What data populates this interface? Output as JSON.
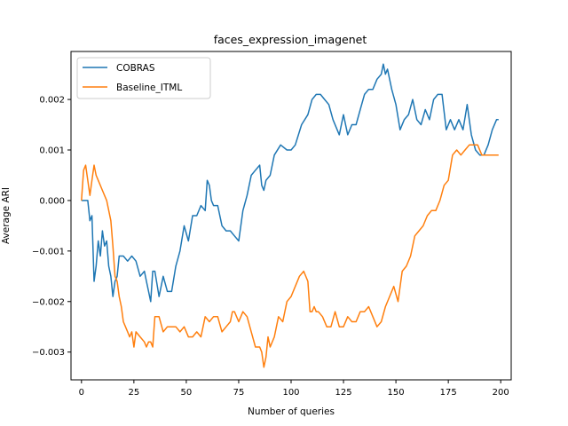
{
  "chart_data": {
    "type": "line",
    "title": "faces_expression_imagenet",
    "xlabel": "Number of queries",
    "ylabel": "Average ARI",
    "xlim": [
      -5,
      205
    ],
    "ylim": [
      -0.00355,
      0.00295
    ],
    "xticks": [
      0,
      25,
      50,
      75,
      100,
      125,
      150,
      175,
      200
    ],
    "xtick_labels": [
      "0",
      "25",
      "50",
      "75",
      "100",
      "125",
      "150",
      "175",
      "200"
    ],
    "yticks": [
      -0.003,
      -0.002,
      -0.001,
      0.0,
      0.001,
      0.002
    ],
    "ytick_labels": [
      "−0.003",
      "−0.002",
      "−0.001",
      "0.000",
      "0.001",
      "0.002"
    ],
    "grid": false,
    "legend_position": "top-left",
    "series": [
      {
        "name": "COBRAS",
        "color": "#1f77b4",
        "x": [
          0,
          3,
          4,
          5,
          6,
          7,
          8,
          9,
          10,
          11,
          12,
          13,
          14,
          15,
          16,
          17,
          18,
          20,
          22,
          24,
          26,
          28,
          30,
          31,
          32,
          33,
          34,
          35,
          37,
          39,
          41,
          43,
          45,
          47,
          49,
          51,
          53,
          55,
          57,
          59,
          60,
          61,
          62,
          63,
          65,
          67,
          69,
          71,
          73,
          75,
          77,
          79,
          81,
          83,
          85,
          86,
          87,
          88,
          90,
          92,
          95,
          98,
          100,
          102,
          105,
          108,
          110,
          112,
          114,
          116,
          118,
          120,
          123,
          125,
          127,
          129,
          131,
          133,
          135,
          137,
          139,
          141,
          143,
          144,
          145,
          146,
          148,
          150,
          152,
          154,
          156,
          158,
          160,
          162,
          164,
          166,
          168,
          170,
          172,
          174,
          176,
          178,
          180,
          182,
          184,
          186,
          188,
          190,
          192,
          194,
          196,
          198,
          199
        ],
        "y": [
          0.0,
          0.0,
          -0.0004,
          -0.0003,
          -0.0016,
          -0.0013,
          -0.0008,
          -0.0011,
          -0.0006,
          -0.0009,
          -0.0008,
          -0.0013,
          -0.0015,
          -0.0019,
          -0.0016,
          -0.0015,
          -0.0011,
          -0.0011,
          -0.0012,
          -0.0011,
          -0.0012,
          -0.0015,
          -0.0014,
          -0.0016,
          -0.0018,
          -0.002,
          -0.0014,
          -0.0014,
          -0.0019,
          -0.0015,
          -0.0018,
          -0.0018,
          -0.0013,
          -0.001,
          -0.0005,
          -0.0008,
          -0.0003,
          -0.0003,
          -0.0001,
          -0.0002,
          0.0004,
          0.0003,
          0.0,
          -0.0001,
          -0.0001,
          -0.0005,
          -0.0006,
          -0.0006,
          -0.0007,
          -0.0008,
          -0.0002,
          0.0001,
          0.0005,
          0.0006,
          0.0007,
          0.0003,
          0.0002,
          0.0004,
          0.0005,
          0.0009,
          0.0011,
          0.001,
          0.001,
          0.0011,
          0.0015,
          0.0017,
          0.002,
          0.0021,
          0.0021,
          0.002,
          0.0019,
          0.0016,
          0.0013,
          0.0017,
          0.0013,
          0.0015,
          0.0015,
          0.0018,
          0.0021,
          0.0022,
          0.0022,
          0.0024,
          0.0025,
          0.0027,
          0.0025,
          0.0026,
          0.0022,
          0.0019,
          0.0014,
          0.0016,
          0.0017,
          0.002,
          0.0016,
          0.0015,
          0.0018,
          0.0016,
          0.002,
          0.0021,
          0.0021,
          0.0014,
          0.0016,
          0.0014,
          0.0016,
          0.0014,
          0.0019,
          0.0013,
          0.001,
          0.0009,
          0.0009,
          0.0011,
          0.0014,
          0.0016,
          0.0016
        ]
      },
      {
        "name": "Baseline_ITML",
        "color": "#ff7f0e",
        "x": [
          0,
          1,
          2,
          3,
          4,
          5,
          6,
          7,
          8,
          10,
          12,
          14,
          15,
          16,
          17,
          18,
          19,
          20,
          21,
          22,
          23,
          24,
          25,
          26,
          28,
          30,
          31,
          32,
          33,
          34,
          35,
          37,
          39,
          41,
          43,
          45,
          47,
          49,
          51,
          53,
          55,
          57,
          58,
          59,
          61,
          63,
          65,
          67,
          69,
          71,
          72,
          73,
          75,
          77,
          79,
          81,
          83,
          85,
          86,
          87,
          88,
          89,
          90,
          92,
          94,
          96,
          98,
          100,
          102,
          104,
          106,
          108,
          109,
          110,
          111,
          112,
          113,
          115,
          117,
          119,
          121,
          123,
          125,
          127,
          129,
          131,
          133,
          135,
          137,
          139,
          141,
          143,
          145,
          147,
          149,
          151,
          153,
          155,
          157,
          159,
          161,
          163,
          165,
          167,
          169,
          171,
          173,
          175,
          177,
          179,
          181,
          183,
          185,
          187,
          189,
          191,
          193,
          195,
          197,
          199
        ],
        "y": [
          0.0,
          0.0006,
          0.0007,
          0.0004,
          0.0001,
          0.0004,
          0.0007,
          0.0005,
          0.0004,
          0.0002,
          0.0,
          -0.0004,
          -0.0009,
          -0.0015,
          -0.0016,
          -0.0019,
          -0.0021,
          -0.0024,
          -0.0025,
          -0.0026,
          -0.0027,
          -0.0026,
          -0.0029,
          -0.0026,
          -0.0027,
          -0.0028,
          -0.0029,
          -0.0028,
          -0.0028,
          -0.0029,
          -0.0023,
          -0.0023,
          -0.0026,
          -0.0025,
          -0.0025,
          -0.0025,
          -0.0026,
          -0.0025,
          -0.0027,
          -0.0027,
          -0.0026,
          -0.0027,
          -0.0025,
          -0.0023,
          -0.0024,
          -0.0023,
          -0.0023,
          -0.0026,
          -0.0025,
          -0.0024,
          -0.0022,
          -0.0022,
          -0.0024,
          -0.0022,
          -0.0023,
          -0.0026,
          -0.0029,
          -0.0029,
          -0.003,
          -0.0033,
          -0.0031,
          -0.0027,
          -0.0029,
          -0.0027,
          -0.0023,
          -0.0024,
          -0.002,
          -0.0019,
          -0.0017,
          -0.0015,
          -0.0014,
          -0.0016,
          -0.0022,
          -0.0022,
          -0.0021,
          -0.0022,
          -0.0022,
          -0.0023,
          -0.0025,
          -0.0025,
          -0.0022,
          -0.0025,
          -0.0025,
          -0.0023,
          -0.0024,
          -0.0024,
          -0.0022,
          -0.0022,
          -0.0021,
          -0.0023,
          -0.0025,
          -0.0024,
          -0.0021,
          -0.0019,
          -0.0017,
          -0.002,
          -0.0014,
          -0.0013,
          -0.0011,
          -0.0007,
          -0.0006,
          -0.0005,
          -0.0003,
          -0.0002,
          -0.0002,
          0.0,
          0.0003,
          0.0004,
          0.0009,
          0.001,
          0.0009,
          0.001,
          0.0011,
          0.0011,
          0.0011,
          0.0009,
          0.0009,
          0.0009,
          0.0009,
          0.0009
        ]
      }
    ]
  }
}
